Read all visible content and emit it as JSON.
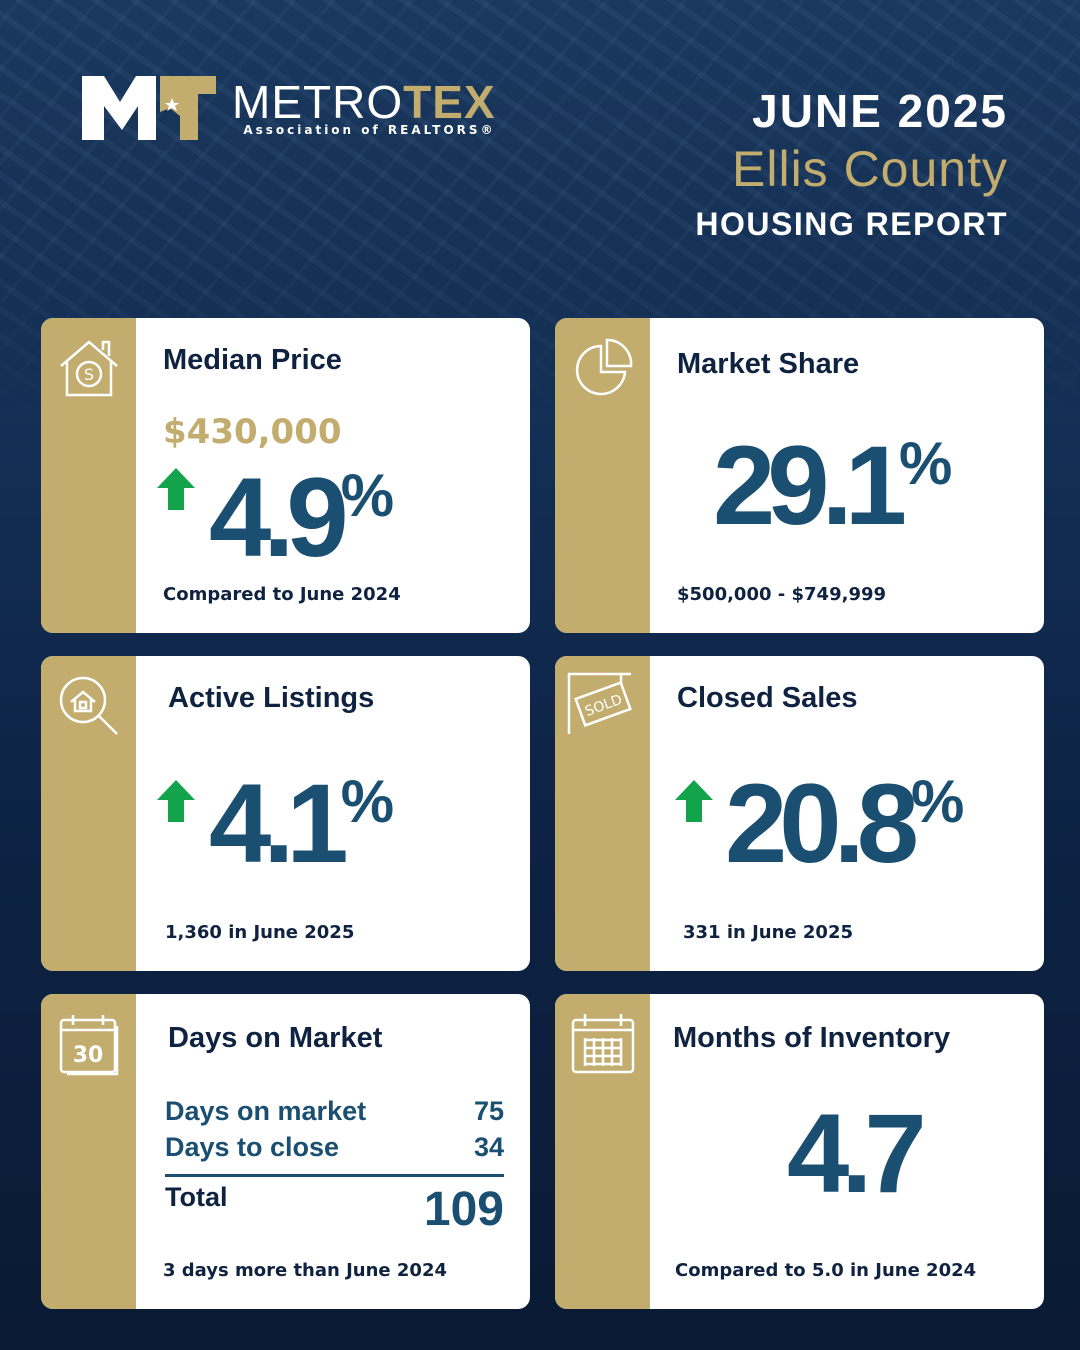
{
  "logo": {
    "initials": "MT",
    "name_part1": "METRO",
    "name_part2": "TEX",
    "subtitle": "Association of REALTORS®"
  },
  "header": {
    "month": "JUNE 2025",
    "county": "Ellis County",
    "report": "HOUSING REPORT"
  },
  "colors": {
    "gold": "#c2ac6e",
    "navy": "#0f2340",
    "blue": "#1b4f72",
    "green": "#13a34a"
  },
  "cards": {
    "median_price": {
      "title": "Median Price",
      "price": "$430,000",
      "trend": "up",
      "change": "4.9",
      "unit": "%",
      "note": "Compared to June 2024",
      "icon": "house-dollar-icon"
    },
    "market_share": {
      "title": "Market Share",
      "value": "29.1",
      "unit": "%",
      "note": "$500,000 - $749,999",
      "icon": "pie-chart-icon"
    },
    "active_listings": {
      "title": "Active Listings",
      "trend": "up",
      "change": "4.1",
      "unit": "%",
      "note": "1,360 in June 2025",
      "icon": "house-search-icon"
    },
    "closed_sales": {
      "title": "Closed Sales",
      "trend": "up",
      "change": "20.8",
      "unit": "%",
      "note": "331 in June 2025",
      "icon": "sold-sign-icon"
    },
    "days_on_market": {
      "title": "Days on Market",
      "rows": [
        {
          "label": "Days on market",
          "value": "75"
        },
        {
          "label": "Days to close",
          "value": "34"
        }
      ],
      "total_label": "Total",
      "total_value": "109",
      "note": "3 days more than June 2024",
      "icon": "calendar-30-icon",
      "icon_text": "30"
    },
    "months_inventory": {
      "title": "Months of Inventory",
      "value": "4.7",
      "note": "Compared to 5.0 in June 2024",
      "icon": "calendar-grid-icon"
    }
  }
}
